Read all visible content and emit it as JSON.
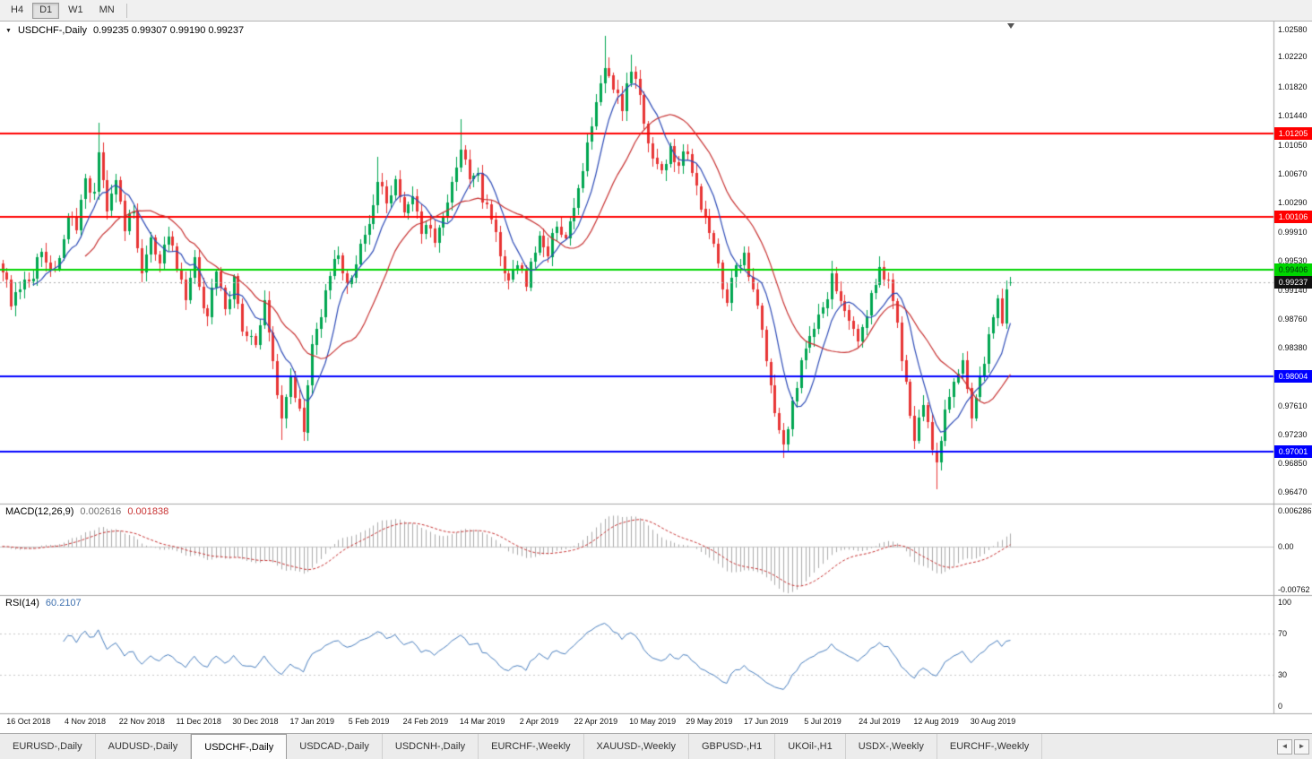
{
  "toolbar": {
    "timeframes": [
      "H4",
      "D1",
      "W1",
      "MN"
    ],
    "active_timeframe": "D1"
  },
  "chart": {
    "header": {
      "collapse_icon": "▼",
      "symbol": "USDCHF-,Daily",
      "ohlc": "0.99235 0.99307 0.99190 0.99237"
    }
  },
  "chart_data": {
    "type": "candlestick",
    "symbol": "USDCHF",
    "timeframe": "Daily",
    "last_ohlc": {
      "open": 0.99235,
      "high": 0.99307,
      "low": 0.9919,
      "close": 0.99237
    },
    "price_range": [
      0.96317,
      1.02687
    ],
    "bars_total": 232,
    "price_axis_ticks": [
      "1.02580",
      "1.02220",
      "1.01820",
      "1.01440",
      "1.01050",
      "1.00670",
      "1.00290",
      "0.99910",
      "0.99530",
      "0.99140",
      "0.98760",
      "0.98380",
      "0.97610",
      "0.97230",
      "0.96850",
      "0.96470"
    ],
    "x_labels": [
      {
        "bar": 6,
        "label": "16 Oct 2018"
      },
      {
        "bar": 19,
        "label": "4 Nov 2018"
      },
      {
        "bar": 32,
        "label": "22 Nov 2018"
      },
      {
        "bar": 45,
        "label": "11 Dec 2018"
      },
      {
        "bar": 58,
        "label": "30 Dec 2018"
      },
      {
        "bar": 71,
        "label": "17 Jan 2019"
      },
      {
        "bar": 84,
        "label": "5 Feb 2019"
      },
      {
        "bar": 97,
        "label": "24 Feb 2019"
      },
      {
        "bar": 110,
        "label": "14 Mar 2019"
      },
      {
        "bar": 123,
        "label": "2 Apr 2019"
      },
      {
        "bar": 136,
        "label": "22 Apr 2019"
      },
      {
        "bar": 149,
        "label": "10 May 2019"
      },
      {
        "bar": 162,
        "label": "29 May 2019"
      },
      {
        "bar": 175,
        "label": "17 Jun 2019"
      },
      {
        "bar": 188,
        "label": "5 Jul 2019"
      },
      {
        "bar": 201,
        "label": "24 Jul 2019"
      },
      {
        "bar": 214,
        "label": "12 Aug 2019"
      },
      {
        "bar": 227,
        "label": "30 Aug 2019"
      }
    ],
    "hlines": [
      {
        "price": 1.01205,
        "label": "1.01205",
        "color": "#ff0000",
        "text_color": "#ffffff"
      },
      {
        "price": 1.00106,
        "label": "1.00106",
        "color": "#ff0000",
        "text_color": "#ffffff"
      },
      {
        "price": 0.99406,
        "label": "0.99406",
        "color": "#00d500",
        "text_color": "#00310f"
      },
      {
        "price": 0.98004,
        "label": "0.98004",
        "color": "#0000ff",
        "text_color": "#ffffff"
      },
      {
        "price": 0.97001,
        "label": "0.97001",
        "color": "#0000ff",
        "text_color": "#ffffff"
      }
    ],
    "current_price": {
      "value": 0.99237,
      "label": "0.99237"
    },
    "close_path": [
      [
        0,
        0.994
      ],
      [
        2,
        0.9895
      ],
      [
        6,
        0.9925
      ],
      [
        9,
        0.9965
      ],
      [
        12,
        0.994
      ],
      [
        15,
        1.001
      ],
      [
        17,
        0.999
      ],
      [
        19,
        1.006
      ],
      [
        21,
        1.0045
      ],
      [
        22,
        1.0095
      ],
      [
        24,
        1.002
      ],
      [
        26,
        1.006
      ],
      [
        28,
        0.999
      ],
      [
        30,
        1.002
      ],
      [
        32,
        0.9935
      ],
      [
        34,
        0.9985
      ],
      [
        36,
        0.995
      ],
      [
        38,
        0.9985
      ],
      [
        40,
        0.994
      ],
      [
        42,
        0.99
      ],
      [
        44,
        0.9955
      ],
      [
        45,
        0.992
      ],
      [
        47,
        0.988
      ],
      [
        49,
        0.994
      ],
      [
        51,
        0.989
      ],
      [
        53,
        0.993
      ],
      [
        55,
        0.986
      ],
      [
        58,
        0.984
      ],
      [
        60,
        0.99
      ],
      [
        62,
        0.982
      ],
      [
        64,
        0.9745
      ],
      [
        66,
        0.98
      ],
      [
        68,
        0.976
      ],
      [
        69,
        0.9725
      ],
      [
        71,
        0.984
      ],
      [
        73,
        0.988
      ],
      [
        75,
        0.993
      ],
      [
        77,
        0.996
      ],
      [
        79,
        0.992
      ],
      [
        81,
        0.995
      ],
      [
        83,
        0.9985
      ],
      [
        84,
        1.0
      ],
      [
        86,
        1.0055
      ],
      [
        88,
        1.003
      ],
      [
        90,
        1.006
      ],
      [
        92,
        1.0015
      ],
      [
        94,
        1.004
      ],
      [
        96,
        0.999
      ],
      [
        97,
        1.0
      ],
      [
        99,
        0.9975
      ],
      [
        101,
        1.001
      ],
      [
        103,
        1.0055
      ],
      [
        105,
        1.01
      ],
      [
        107,
        1.006
      ],
      [
        109,
        1.007
      ],
      [
        110,
        1.003
      ],
      [
        112,
        1.001
      ],
      [
        114,
        0.996
      ],
      [
        116,
        0.9925
      ],
      [
        118,
        0.9945
      ],
      [
        120,
        0.992
      ],
      [
        122,
        0.9965
      ],
      [
        123,
        0.9985
      ],
      [
        125,
        0.996
      ],
      [
        127,
        1.0
      ],
      [
        129,
        0.9985
      ],
      [
        131,
        1.002
      ],
      [
        133,
        1.007
      ],
      [
        135,
        1.013
      ],
      [
        136,
        1.016
      ],
      [
        138,
        1.021
      ],
      [
        140,
        1.018
      ],
      [
        142,
        1.015
      ],
      [
        144,
        1.0205
      ],
      [
        146,
        1.017
      ],
      [
        148,
        1.011
      ],
      [
        149,
        1.009
      ],
      [
        151,
        1.007
      ],
      [
        153,
        1.0105
      ],
      [
        155,
        1.008
      ],
      [
        157,
        1.0095
      ],
      [
        159,
        1.005
      ],
      [
        161,
        1.001
      ],
      [
        162,
        0.999
      ],
      [
        164,
        0.995
      ],
      [
        166,
        0.99
      ],
      [
        168,
        0.9945
      ],
      [
        170,
        0.9965
      ],
      [
        172,
        0.9915
      ],
      [
        174,
        0.986
      ],
      [
        175,
        0.982
      ],
      [
        177,
        0.975
      ],
      [
        179,
        0.971
      ],
      [
        181,
        0.977
      ],
      [
        183,
        0.982
      ],
      [
        185,
        0.9855
      ],
      [
        187,
        0.988
      ],
      [
        188,
        0.989
      ],
      [
        190,
        0.9935
      ],
      [
        192,
        0.99
      ],
      [
        194,
        0.9875
      ],
      [
        196,
        0.9845
      ],
      [
        198,
        0.988
      ],
      [
        200,
        0.992
      ],
      [
        201,
        0.9945
      ],
      [
        203,
        0.993
      ],
      [
        205,
        0.987
      ],
      [
        207,
        0.979
      ],
      [
        209,
        0.9715
      ],
      [
        211,
        0.976
      ],
      [
        213,
        0.97
      ],
      [
        214,
        0.9685
      ],
      [
        216,
        0.9755
      ],
      [
        218,
        0.9795
      ],
      [
        220,
        0.982
      ],
      [
        222,
        0.9745
      ],
      [
        224,
        0.98
      ],
      [
        226,
        0.9855
      ],
      [
        227,
        0.988
      ],
      [
        228,
        0.9905
      ],
      [
        229,
        0.987
      ],
      [
        230,
        0.9915
      ],
      [
        231,
        0.99237
      ]
    ],
    "extreme_wicks": [
      {
        "bar": 22,
        "high": 1.0135
      },
      {
        "bar": 64,
        "low": 0.9716
      },
      {
        "bar": 69,
        "low": 0.9717
      },
      {
        "bar": 86,
        "high": 1.009
      },
      {
        "bar": 105,
        "high": 1.014
      },
      {
        "bar": 138,
        "high": 1.025
      },
      {
        "bar": 144,
        "high": 1.0225
      },
      {
        "bar": 179,
        "low": 0.9693
      },
      {
        "bar": 190,
        "high": 0.9952
      },
      {
        "bar": 201,
        "high": 0.9958
      },
      {
        "bar": 214,
        "low": 0.965
      }
    ],
    "moving_averages": [
      {
        "period": 8,
        "color": "#2f4db8"
      },
      {
        "period": 20,
        "color": "#c83232"
      }
    ],
    "indicators": {
      "macd": {
        "label": "MACD(12,26,9)",
        "main_value": "0.002616",
        "signal_value": "0.001838",
        "fast": 12,
        "slow": 26,
        "signal": 9,
        "scale": [
          -0.0085,
          0.0075
        ],
        "axis_ticks": [
          {
            "value": 0.006286,
            "label": "0.006286"
          },
          {
            "value": 0.0,
            "label": "0.00"
          },
          {
            "value": -0.00762,
            "label": "-0.00762"
          }
        ],
        "histogram_color": "#ababab",
        "signal_color": "#c83232"
      },
      "rsi": {
        "label": "RSI(14)",
        "value": "60.2107",
        "period": 14,
        "levels": [
          70,
          30
        ],
        "axis_ticks": [
          {
            "value": 100,
            "label": "100"
          },
          {
            "value": 70,
            "label": "70"
          },
          {
            "value": 30,
            "label": "30"
          },
          {
            "value": 0,
            "label": "0"
          }
        ],
        "color": "#4a7fbf"
      }
    },
    "colors": {
      "bull": "#00a651",
      "bear": "#e83535",
      "background": "#ffffff",
      "border": "#a8a8a8",
      "current_price_line": "#aaaaaa"
    }
  },
  "tabs": {
    "items": [
      "EURUSD-,Daily",
      "AUDUSD-,Daily",
      "USDCHF-,Daily",
      "USDCAD-,Daily",
      "USDCNH-,Daily",
      "EURCHF-,Weekly",
      "XAUUSD-,Weekly",
      "GBPUSD-,H1",
      "UKOil-,H1",
      "USDX-,Weekly",
      "EURCHF-,Weekly"
    ],
    "active_index": 2,
    "scroll_left_icon": "◄",
    "scroll_right_icon": "►"
  }
}
